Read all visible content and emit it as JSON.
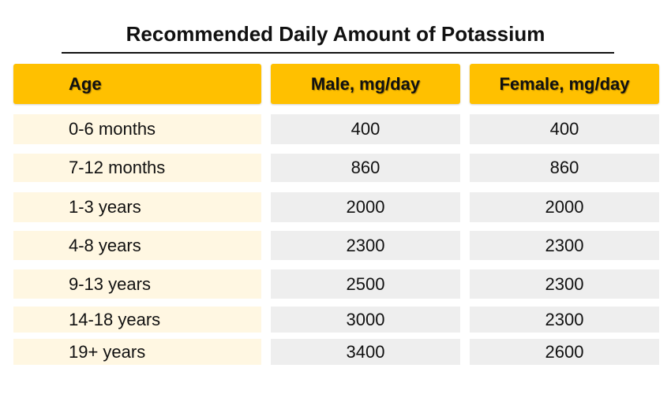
{
  "title": "Recommended Daily Amount of Potassium",
  "colors": {
    "header_bg": "#ffc000",
    "age_cell_bg": "#fff7e2",
    "value_cell_bg": "#eeeeee"
  },
  "table": {
    "headers": [
      "Age",
      "Male, mg/day",
      "Female, mg/day"
    ],
    "rows": [
      {
        "age": "0-6 months",
        "male": "400",
        "female": "400"
      },
      {
        "age": "7-12 months",
        "male": "860",
        "female": "860"
      },
      {
        "age": "1-3 years",
        "male": "2000",
        "female": "2000"
      },
      {
        "age": "4-8 years",
        "male": "2300",
        "female": "2300"
      },
      {
        "age": "9-13 years",
        "male": "2500",
        "female": "2300"
      },
      {
        "age": "14-18 years",
        "male": "3000",
        "female": "2300"
      },
      {
        "age": "19+ years",
        "male": "3400",
        "female": "2600"
      }
    ]
  }
}
